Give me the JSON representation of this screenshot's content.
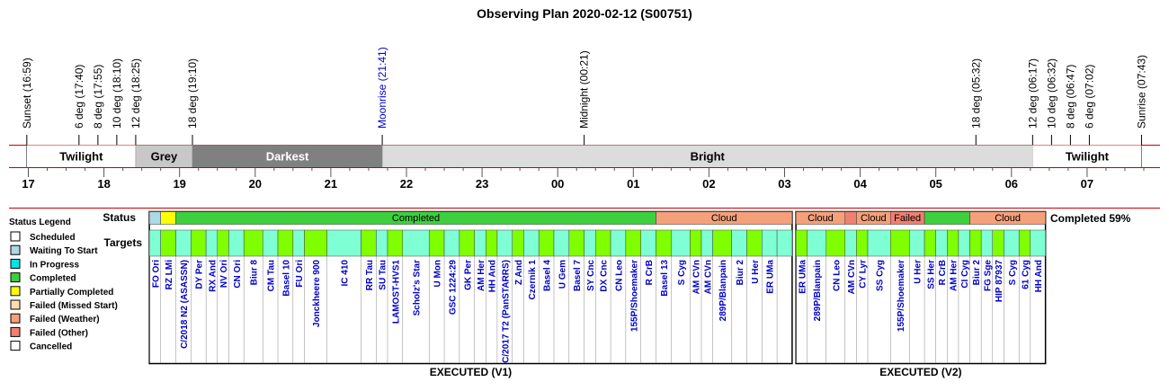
{
  "title": "Observing Plan 2020-02-12 (S00751)",
  "colors": {
    "scheduled": "#ffffff",
    "waiting": "#add8e6",
    "in_progress": "#00e5e5",
    "completed": "#3ecf3e",
    "partially_completed": "#ffff00",
    "failed_missed_start": "#ffdeb0",
    "failed_weather": "#f4a07a",
    "failed_other": "#f08070",
    "cancelled": "#ffffff",
    "twilight": "#ffffff",
    "grey": "#c8c8c8",
    "darkest": "#808080",
    "bright": "#dcdcdc",
    "event_text": "#000000",
    "moon_text": "#0000c8",
    "target_text": "#0000c8",
    "target_cyan": "#7fffd4",
    "target_green": "#7fff00",
    "timeline_line": "#c80000"
  },
  "chart_data": {
    "type": "timeline",
    "title": "Observing Plan 2020-02-12 (S00751)",
    "time_axis": {
      "start_hour": 16.85,
      "end_hour": 31.92,
      "tick_labels": [
        "17",
        "18",
        "19",
        "20",
        "21",
        "22",
        "23",
        "00",
        "01",
        "02",
        "03",
        "04",
        "05",
        "06",
        "07"
      ],
      "tick_hours": [
        17,
        18,
        19,
        20,
        21,
        22,
        23,
        24,
        25,
        26,
        27,
        28,
        29,
        30,
        31
      ]
    },
    "events": [
      {
        "label": "Sunset (16:59)",
        "hour": 16.98,
        "kind": "sun"
      },
      {
        "label": "6 deg (17:40)",
        "hour": 17.67,
        "kind": "twilight"
      },
      {
        "label": "8 deg (17:55)",
        "hour": 17.92,
        "kind": "twilight"
      },
      {
        "label": "10 deg (18:10)",
        "hour": 18.17,
        "kind": "twilight"
      },
      {
        "label": "12 deg (18:25)",
        "hour": 18.42,
        "kind": "twilight"
      },
      {
        "label": "18 deg (19:10)",
        "hour": 19.17,
        "kind": "twilight"
      },
      {
        "label": "Moonrise (21:41)",
        "hour": 21.68,
        "kind": "moon"
      },
      {
        "label": "Midnight (00:21)",
        "hour": 24.35,
        "kind": "midnight"
      },
      {
        "label": "18 deg (05:32)",
        "hour": 29.53,
        "kind": "twilight"
      },
      {
        "label": "12 deg (06:17)",
        "hour": 30.28,
        "kind": "twilight"
      },
      {
        "label": "10 deg (06:32)",
        "hour": 30.53,
        "kind": "twilight"
      },
      {
        "label": "8 deg (06:47)",
        "hour": 30.78,
        "kind": "twilight"
      },
      {
        "label": "6 deg (07:02)",
        "hour": 31.03,
        "kind": "twilight"
      },
      {
        "label": "Sunrise (07:43)",
        "hour": 31.72,
        "kind": "sun"
      }
    ],
    "sky_bands": [
      {
        "label": "Twilight",
        "start": 16.98,
        "end": 18.42,
        "color_key": "twilight",
        "text_color": "#000000"
      },
      {
        "label": "Grey",
        "start": 18.42,
        "end": 19.17,
        "color_key": "grey",
        "text_color": "#000000"
      },
      {
        "label": "Darkest",
        "start": 19.17,
        "end": 21.68,
        "color_key": "darkest",
        "text_color": "#ffffff"
      },
      {
        "label": "Bright",
        "start": 21.68,
        "end": 30.28,
        "color_key": "bright",
        "text_color": "#000000"
      },
      {
        "label": "Twilight",
        "start": 30.28,
        "end": 31.72,
        "color_key": "twilight",
        "text_color": "#000000"
      }
    ],
    "status_label": "Status",
    "targets_label": "Targets",
    "completion_text": "Completed 59%",
    "legend_title": "Status Legend",
    "legend": [
      {
        "label": "Scheduled",
        "color_key": "scheduled"
      },
      {
        "label": "Waiting To Start",
        "color_key": "waiting"
      },
      {
        "label": "In Progress",
        "color_key": "in_progress"
      },
      {
        "label": "Completed",
        "color_key": "completed"
      },
      {
        "label": "Partially Completed",
        "color_key": "partially_completed"
      },
      {
        "label": "Failed (Missed Start)",
        "color_key": "failed_missed_start"
      },
      {
        "label": "Failed (Weather)",
        "color_key": "failed_weather"
      },
      {
        "label": "Failed (Other)",
        "color_key": "failed_other"
      },
      {
        "label": "Cancelled",
        "color_key": "cancelled"
      }
    ],
    "executions": [
      {
        "label": "EXECUTED (V1)",
        "start": 18.6,
        "end": 27.1,
        "status": [
          {
            "start": 18.6,
            "end": 18.75,
            "status": "waiting",
            "label": ""
          },
          {
            "start": 18.75,
            "end": 18.95,
            "status": "partially_completed",
            "label": ""
          },
          {
            "start": 18.95,
            "end": 25.3,
            "status": "completed",
            "label": "Completed"
          },
          {
            "start": 25.3,
            "end": 27.1,
            "status": "failed_weather",
            "label": "Cloud"
          }
        ],
        "targets": [
          {
            "name": "FO Ori",
            "start": 18.6,
            "end": 18.75,
            "color": "cyan"
          },
          {
            "name": "RZ LMi",
            "start": 18.75,
            "end": 18.95,
            "color": "green"
          },
          {
            "name": "C/2018 N2 (ASASSN)",
            "start": 18.95,
            "end": 19.15,
            "color": "cyan"
          },
          {
            "name": "DY Per",
            "start": 19.15,
            "end": 19.35,
            "color": "green"
          },
          {
            "name": "RX And",
            "start": 19.35,
            "end": 19.5,
            "color": "cyan"
          },
          {
            "name": "NV Ori",
            "start": 19.5,
            "end": 19.65,
            "color": "green"
          },
          {
            "name": "CN Ori",
            "start": 19.65,
            "end": 19.85,
            "color": "cyan"
          },
          {
            "name": "Biur 8",
            "start": 19.85,
            "end": 20.1,
            "color": "green"
          },
          {
            "name": "CM Tau",
            "start": 20.1,
            "end": 20.3,
            "color": "cyan"
          },
          {
            "name": "Basel 10",
            "start": 20.3,
            "end": 20.5,
            "color": "green"
          },
          {
            "name": "FU Ori",
            "start": 20.5,
            "end": 20.65,
            "color": "cyan"
          },
          {
            "name": "Jonckheere 900",
            "start": 20.65,
            "end": 20.95,
            "color": "green"
          },
          {
            "name": "IC 410",
            "start": 20.95,
            "end": 21.4,
            "color": "cyan"
          },
          {
            "name": "RR Tau",
            "start": 21.4,
            "end": 21.6,
            "color": "green"
          },
          {
            "name": "SU Tau",
            "start": 21.6,
            "end": 21.75,
            "color": "cyan"
          },
          {
            "name": "LAMOST-HVS1",
            "start": 21.75,
            "end": 21.95,
            "color": "green"
          },
          {
            "name": "Scholz's Star",
            "start": 21.95,
            "end": 22.3,
            "color": "cyan"
          },
          {
            "name": "U Mon",
            "start": 22.3,
            "end": 22.5,
            "color": "green"
          },
          {
            "name": "GSC 1224:29",
            "start": 22.5,
            "end": 22.7,
            "color": "cyan"
          },
          {
            "name": "GK Per",
            "start": 22.7,
            "end": 22.9,
            "color": "green"
          },
          {
            "name": "AM Her",
            "start": 22.9,
            "end": 23.05,
            "color": "cyan"
          },
          {
            "name": "HH And",
            "start": 23.05,
            "end": 23.2,
            "color": "green"
          },
          {
            "name": "C/2017 T2 (PanSTARRS)",
            "start": 23.2,
            "end": 23.4,
            "color": "cyan"
          },
          {
            "name": "Z And",
            "start": 23.4,
            "end": 23.55,
            "color": "green"
          },
          {
            "name": "Czernik 1",
            "start": 23.55,
            "end": 23.75,
            "color": "cyan"
          },
          {
            "name": "Basel 4",
            "start": 23.75,
            "end": 23.95,
            "color": "green"
          },
          {
            "name": "U Gem",
            "start": 23.95,
            "end": 24.15,
            "color": "cyan"
          },
          {
            "name": "Basel 7",
            "start": 24.15,
            "end": 24.35,
            "color": "green"
          },
          {
            "name": "SY Cnc",
            "start": 24.35,
            "end": 24.5,
            "color": "cyan"
          },
          {
            "name": "DX Cnc",
            "start": 24.5,
            "end": 24.7,
            "color": "green"
          },
          {
            "name": "CN Leo",
            "start": 24.7,
            "end": 24.9,
            "color": "cyan"
          },
          {
            "name": "155P/Shoemaker",
            "start": 24.9,
            "end": 25.1,
            "color": "green"
          },
          {
            "name": "R CrB",
            "start": 25.1,
            "end": 25.3,
            "color": "cyan"
          },
          {
            "name": "Basel 13",
            "start": 25.3,
            "end": 25.5,
            "color": "green"
          },
          {
            "name": "S Cyg",
            "start": 25.5,
            "end": 25.75,
            "color": "cyan"
          },
          {
            "name": "AM CVn",
            "start": 25.75,
            "end": 25.9,
            "color": "green"
          },
          {
            "name": "AM CVn",
            "start": 25.9,
            "end": 26.05,
            "color": "cyan"
          },
          {
            "name": "289P/Blanpain",
            "start": 26.05,
            "end": 26.3,
            "color": "green"
          },
          {
            "name": "Biur 2",
            "start": 26.3,
            "end": 26.5,
            "color": "cyan"
          },
          {
            "name": "U Her",
            "start": 26.5,
            "end": 26.7,
            "color": "green"
          },
          {
            "name": "ER UMa",
            "start": 26.7,
            "end": 26.9,
            "color": "cyan"
          },
          {
            "name": "",
            "start": 26.9,
            "end": 27.1,
            "color": "cyan"
          }
        ]
      },
      {
        "label": "EXECUTED (V2)",
        "start": 27.15,
        "end": 30.45,
        "status": [
          {
            "start": 27.15,
            "end": 27.8,
            "status": "failed_weather",
            "label": "Cloud"
          },
          {
            "start": 27.8,
            "end": 27.95,
            "status": "failed_other",
            "label": ""
          },
          {
            "start": 27.95,
            "end": 28.4,
            "status": "failed_weather",
            "label": "Cloud"
          },
          {
            "start": 28.4,
            "end": 28.85,
            "status": "failed_other",
            "label": "Failed"
          },
          {
            "start": 28.85,
            "end": 29.45,
            "status": "completed",
            "label": ""
          },
          {
            "start": 29.45,
            "end": 30.45,
            "status": "failed_weather",
            "label": "Cloud"
          }
        ],
        "targets": [
          {
            "name": "ER UMa",
            "start": 27.15,
            "end": 27.3,
            "color": "green"
          },
          {
            "name": "289P/Blanpain",
            "start": 27.3,
            "end": 27.55,
            "color": "cyan"
          },
          {
            "name": "CN Leo",
            "start": 27.55,
            "end": 27.8,
            "color": "green"
          },
          {
            "name": "AM CVn",
            "start": 27.8,
            "end": 27.95,
            "color": "cyan"
          },
          {
            "name": "CY Lyr",
            "start": 27.95,
            "end": 28.1,
            "color": "green"
          },
          {
            "name": "SS Cyg",
            "start": 28.1,
            "end": 28.4,
            "color": "cyan"
          },
          {
            "name": "155P/Shoemaker",
            "start": 28.4,
            "end": 28.65,
            "color": "green"
          },
          {
            "name": "U Her",
            "start": 28.65,
            "end": 28.85,
            "color": "cyan"
          },
          {
            "name": "SS Her",
            "start": 28.85,
            "end": 29.0,
            "color": "green"
          },
          {
            "name": "R CrB",
            "start": 29.0,
            "end": 29.15,
            "color": "cyan"
          },
          {
            "name": "AM Her",
            "start": 29.15,
            "end": 29.3,
            "color": "green"
          },
          {
            "name": "CI Cyg",
            "start": 29.3,
            "end": 29.45,
            "color": "cyan"
          },
          {
            "name": "Biur 2",
            "start": 29.45,
            "end": 29.6,
            "color": "green"
          },
          {
            "name": "FG Sge",
            "start": 29.6,
            "end": 29.75,
            "color": "cyan"
          },
          {
            "name": "HIP 87937",
            "start": 29.75,
            "end": 29.9,
            "color": "green"
          },
          {
            "name": "S Cyg",
            "start": 29.9,
            "end": 30.1,
            "color": "cyan"
          },
          {
            "name": "61 Cyg",
            "start": 30.1,
            "end": 30.25,
            "color": "green"
          },
          {
            "name": "HH And",
            "start": 30.25,
            "end": 30.45,
            "color": "cyan"
          }
        ]
      }
    ]
  }
}
